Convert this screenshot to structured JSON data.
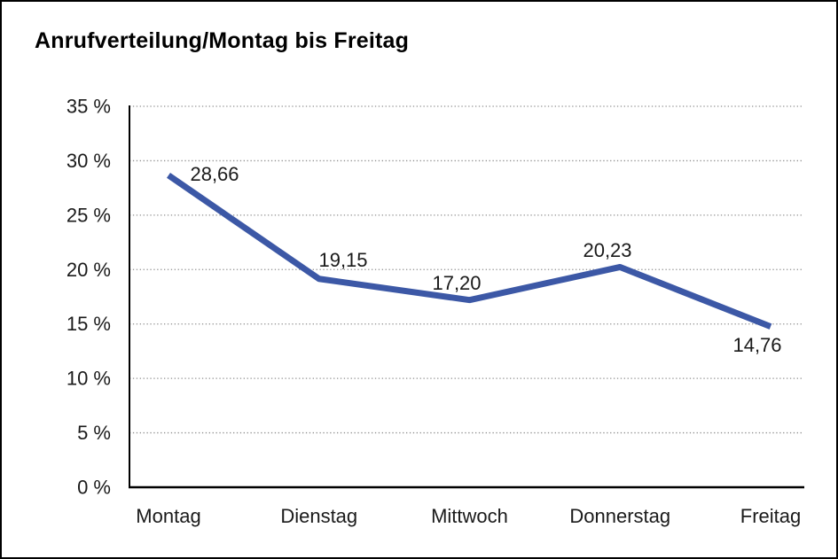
{
  "page": {
    "background_color": "#ffffff",
    "border_color": "#000000"
  },
  "chart_data": {
    "type": "line",
    "title": "Anrufverteilung/Montag bis Freitag",
    "categories": [
      "Montag",
      "Dienstag",
      "Mittwoch",
      "Donnerstag",
      "Freitag"
    ],
    "values": [
      28.66,
      19.15,
      17.2,
      20.23,
      14.76
    ],
    "data_labels": [
      "28,66",
      "19,15",
      "17,20",
      "20,23",
      "14,76"
    ],
    "xlabel": "",
    "ylabel": "",
    "y_axis": {
      "min": 0,
      "max": 35,
      "step": 5,
      "tick_labels": [
        "0 %",
        "5 %",
        "10 %",
        "15 %",
        "20 %",
        "25 %",
        "30 %",
        "35 %"
      ]
    },
    "legend": "none",
    "grid": "horizontal-dotted",
    "line_color": "#3C58A6",
    "grid_color": "#8f8f8f",
    "axis_color": "#000000",
    "text_color": "#1a1a1a"
  }
}
